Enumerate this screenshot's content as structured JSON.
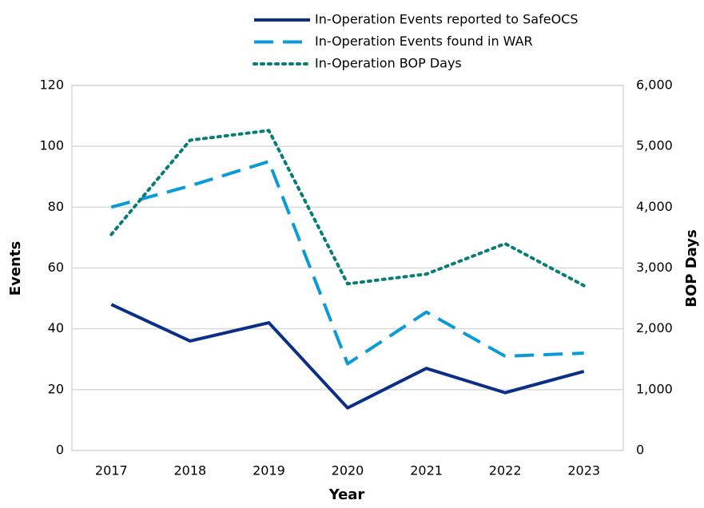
{
  "chart_data": {
    "type": "line",
    "categories": [
      "2017",
      "2018",
      "2019",
      "2020",
      "2021",
      "2022",
      "2023"
    ],
    "series": [
      {
        "name": "In-Operation Events reported to SafeOCS",
        "color": "#0b2e86",
        "style": "solid",
        "values": [
          48,
          36,
          42,
          14,
          27,
          19,
          26
        ]
      },
      {
        "name": "In-Operation Events found in WAR",
        "color": "#0a9ad8",
        "style": "dashed",
        "values": [
          80,
          87,
          95,
          28.5,
          45.5,
          31,
          32
        ]
      },
      {
        "name": "In-Operation BOP Days",
        "color": "#0a7c78",
        "style": "dotted",
        "axis": "y2",
        "values": [
          3550,
          5100,
          5260,
          2740,
          2900,
          3400,
          2710
        ]
      }
    ],
    "xlabel": "Year",
    "ylabel": "Events",
    "y2label": "BOP Days",
    "ylim": [
      0,
      120
    ],
    "yticks": [
      0,
      20,
      40,
      60,
      80,
      100,
      120
    ],
    "y2lim": [
      0,
      6000
    ],
    "y2ticks": [
      0,
      {
        "value": 1000,
        "label": "1,000"
      },
      {
        "value": 2000,
        "label": "2,000"
      },
      {
        "value": 3000,
        "label": "3,000"
      },
      {
        "value": 4000,
        "label": "4,000"
      },
      {
        "value": 5000,
        "label": "5,000"
      },
      {
        "value": 6000,
        "label": "6,000"
      }
    ],
    "grid": true,
    "legend": "top"
  }
}
